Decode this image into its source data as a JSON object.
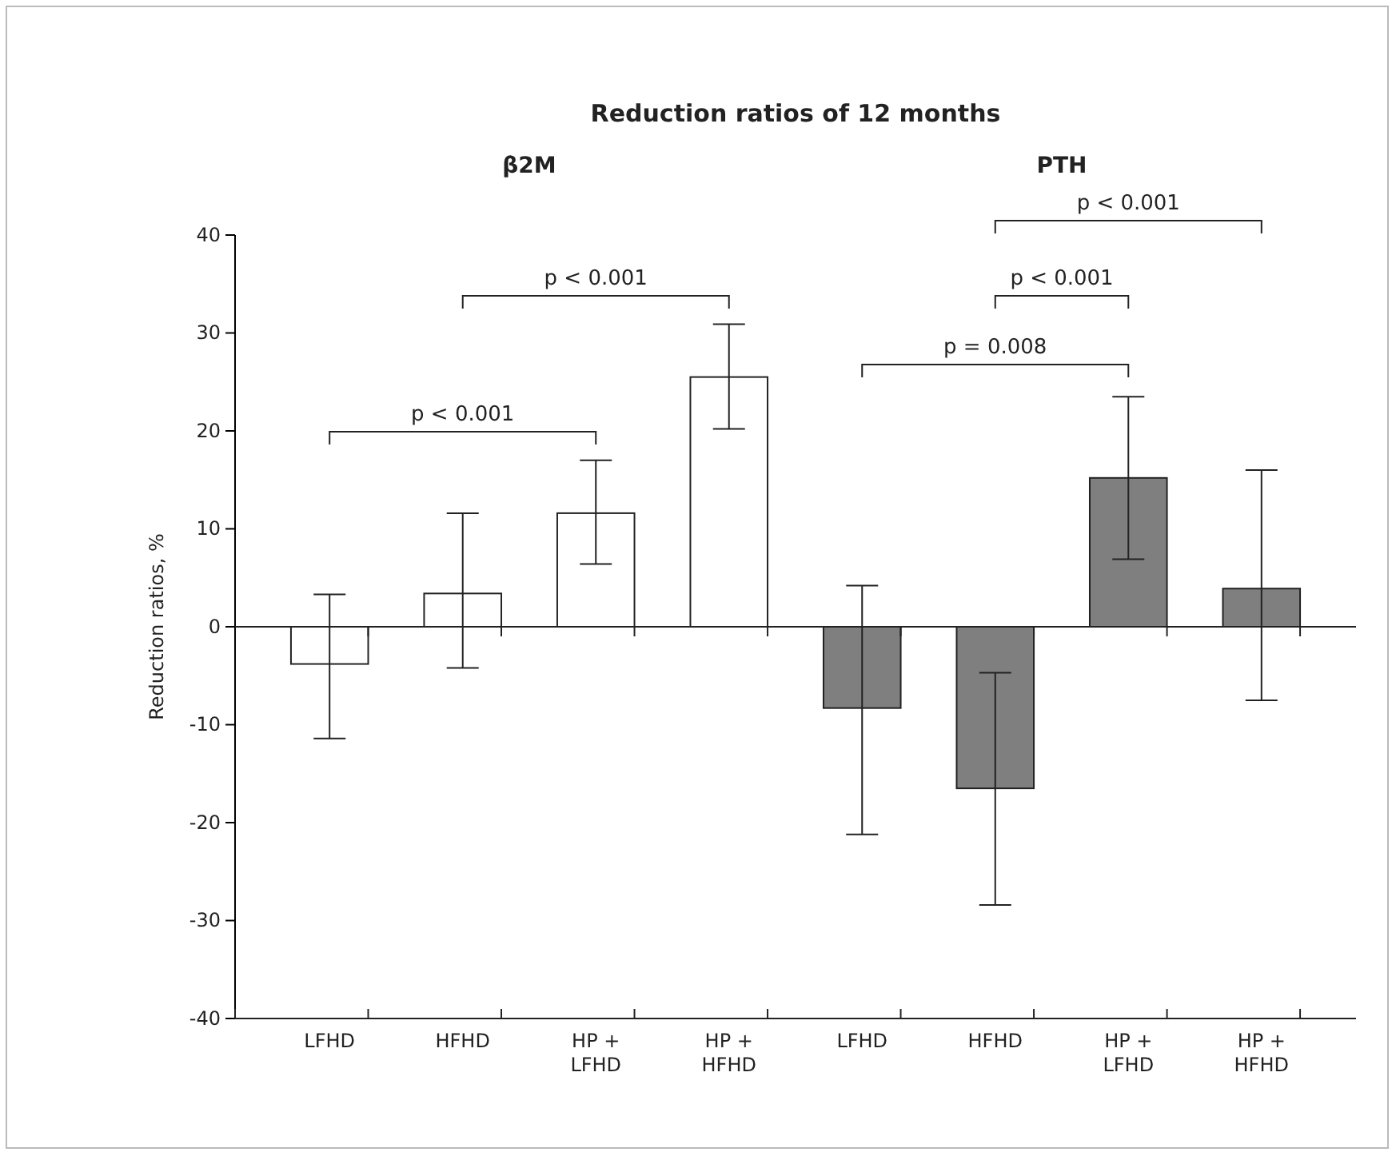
{
  "chart_data": {
    "type": "bar",
    "title": "Reduction ratios of 12 months",
    "ylabel": "Reduction ratios, %",
    "categories": [
      "LFHD",
      "HFHD",
      "HP + LFHD",
      "HP + HFHD",
      "LFHD",
      "HFHD",
      "HP + LFHD",
      "HP + HFHD"
    ],
    "values": [
      -3.8,
      3.4,
      11.6,
      25.5,
      -8.3,
      -16.5,
      15.2,
      3.9
    ],
    "colors": [
      "#ffffff",
      "#ffffff",
      "#ffffff",
      "#ffffff",
      "#7f7f7f",
      "#7f7f7f",
      "#7f7f7f",
      "#7f7f7f"
    ],
    "errors": [
      [
        -11.4,
        3.3
      ],
      [
        -4.2,
        11.6
      ],
      [
        6.4,
        17
      ],
      [
        20.2,
        30.9
      ],
      [
        -21.2,
        4.2
      ],
      [
        -28.4,
        -4.7
      ],
      [
        6.9,
        23.5
      ],
      [
        -7.5,
        16
      ]
    ],
    "ylim": [
      -40,
      40
    ],
    "yticks": [
      -40,
      -30,
      -20,
      -10,
      0,
      10,
      20,
      30,
      40
    ],
    "annotations": [
      "β2M",
      "PTH",
      "p < 0.001",
      "p < 0.001",
      "p < 0.001",
      "p = 0.008",
      "p < 0.001"
    ]
  }
}
